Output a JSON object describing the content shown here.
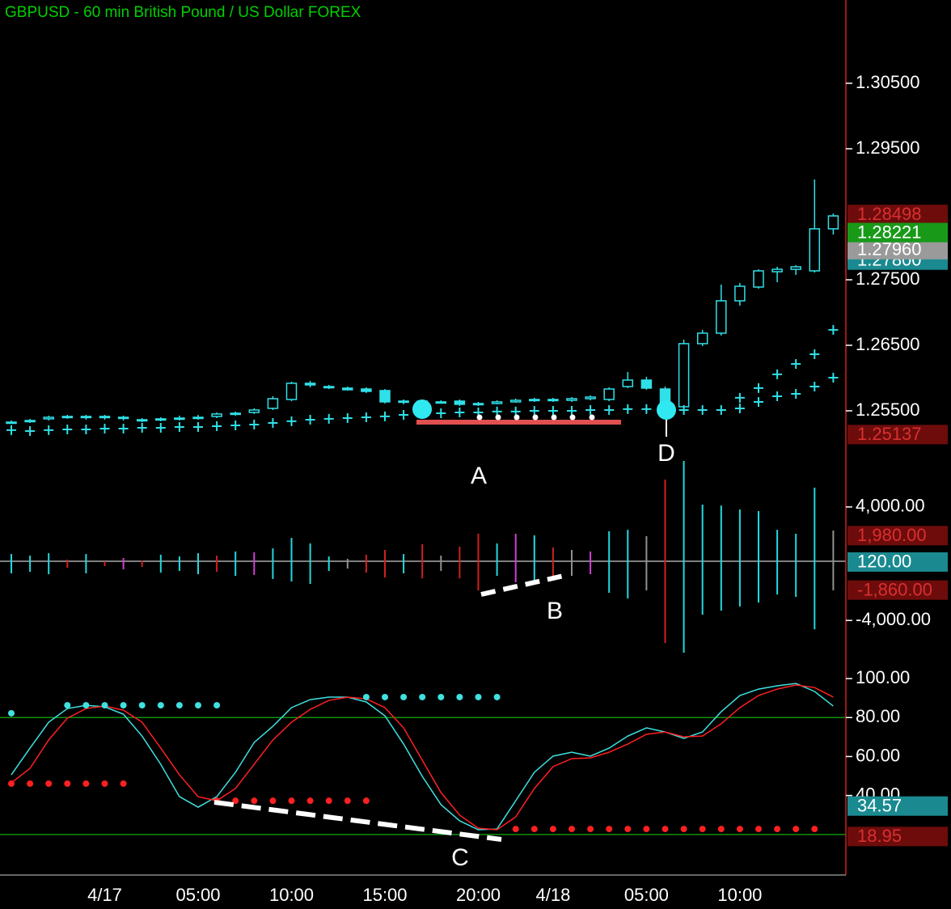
{
  "chart_data": [
    {
      "type": "candlestick",
      "title": "GBPUSD - 60 min  British Pound / US Dollar  FOREX",
      "color": "#30e0e8",
      "open": [
        1.25327,
        1.2534,
        1.25377,
        1.25401,
        1.25401,
        1.25414,
        1.25401,
        1.25352,
        1.25364,
        1.25377,
        1.25389,
        1.25414,
        1.25451,
        1.25475,
        1.25537,
        1.25673,
        1.2592,
        1.2587,
        1.25846,
        1.25833,
        1.25809,
        1.25636,
        1.25648,
        1.25636,
        1.25648,
        1.25599,
        1.25611,
        1.25636,
        1.2566,
        1.25673,
        1.2566,
        1.25685,
        1.25673,
        1.2587,
        1.25969,
        1.25833,
        1.25562,
        1.26525,
        1.26685,
        1.27179,
        1.27389,
        1.27623,
        1.2766,
        1.27636,
        1.28278
      ],
      "high": [
        1.25352,
        1.25377,
        1.25426,
        1.25438,
        1.25438,
        1.25438,
        1.25426,
        1.25389,
        1.25401,
        1.25426,
        1.25438,
        1.25475,
        1.25488,
        1.25537,
        1.25722,
        1.25944,
        1.25957,
        1.25895,
        1.2587,
        1.25858,
        1.25833,
        1.25673,
        1.25673,
        1.2566,
        1.25673,
        1.25636,
        1.2566,
        1.25685,
        1.25698,
        1.25698,
        1.2571,
        1.25735,
        1.25858,
        1.26093,
        1.26019,
        1.2587,
        1.26586,
        1.26735,
        1.27426,
        1.27451,
        1.2766,
        1.27698,
        1.27722,
        1.29031,
        1.28512
      ],
      "low": [
        1.25302,
        1.25315,
        1.25352,
        1.25377,
        1.25364,
        1.25364,
        1.25352,
        1.25327,
        1.2534,
        1.25352,
        1.25364,
        1.25389,
        1.25426,
        1.25451,
        1.25512,
        1.25648,
        1.25858,
        1.25833,
        1.25809,
        1.25772,
        1.25611,
        1.25599,
        1.25611,
        1.25611,
        1.25574,
        1.25574,
        1.25599,
        1.25623,
        1.25636,
        1.25636,
        1.25636,
        1.2566,
        1.25648,
        1.25846,
        1.25821,
        1.25414,
        1.25537,
        1.26488,
        1.26648,
        1.27105,
        1.27364,
        1.27463,
        1.27574,
        1.27611,
        1.28191
      ],
      "close": [
        1.25327,
        1.25352,
        1.25401,
        1.25414,
        1.25414,
        1.25401,
        1.25389,
        1.25364,
        1.25377,
        1.25389,
        1.25401,
        1.25451,
        1.25463,
        1.25512,
        1.25685,
        1.2592,
        1.25895,
        1.25858,
        1.25821,
        1.25796,
        1.25636,
        1.25648,
        1.25636,
        1.25636,
        1.25599,
        1.25611,
        1.25636,
        1.2566,
        1.25673,
        1.2566,
        1.25685,
        1.2571,
        1.25833,
        1.25969,
        1.25846,
        1.25599,
        1.26525,
        1.26685,
        1.27179,
        1.27401,
        1.27636,
        1.2766,
        1.27698,
        1.28278,
        1.28475
      ],
      "bands": [
        {
          "color": "#30e0e8",
          "values": [
            1.25204,
            1.25191,
            1.25204,
            1.25216,
            1.25216,
            1.25228,
            1.25228,
            1.25241,
            1.25241,
            1.25253,
            1.25253,
            1.25265,
            1.25278,
            1.2529,
            1.25315,
            1.2534,
            1.25364,
            1.25377,
            1.25389,
            1.25401,
            1.25414,
            1.25438,
            1.25451,
            1.25463,
            1.25475,
            1.25475,
            1.25488,
            1.25488,
            1.255,
            1.255,
            1.255,
            1.25512,
            1.25512,
            1.25525,
            1.25525,
            1.25525,
            1.25512,
            1.25512,
            1.25512,
            1.25537,
            1.25636,
            1.25722,
            1.25759,
            1.2587,
            1.26006
          ]
        },
        {
          "color": "#30e0e8",
          "values": [
            null,
            null,
            null,
            null,
            null,
            null,
            null,
            null,
            null,
            null,
            null,
            null,
            null,
            null,
            null,
            null,
            null,
            null,
            null,
            null,
            null,
            null,
            null,
            null,
            null,
            null,
            null,
            null,
            null,
            null,
            null,
            null,
            null,
            null,
            null,
            null,
            null,
            null,
            null,
            1.25698,
            1.25846,
            1.26056,
            1.26216,
            1.26364,
            1.26735
          ]
        }
      ],
      "ylim": [
        1.24302,
        1.31771
      ],
      "yticks": [
        {
          "value": 1.305,
          "label": "1.30500"
        },
        {
          "value": 1.295,
          "label": "1.29500"
        },
        {
          "value": 1.275,
          "label": "1.27500"
        },
        {
          "value": 1.265,
          "label": "1.26500"
        },
        {
          "value": 1.255,
          "label": "1.25500"
        }
      ],
      "markers": [
        {
          "value": 1.278,
          "label": "1.27800",
          "color": "#1a8a90",
          "text_color": "#ffffff"
        },
        {
          "value": 1.2796,
          "label": "1.27960",
          "color": "#9a9a9a",
          "text_color": "#ffffff"
        },
        {
          "value": 1.28498,
          "label": "1.28498",
          "color": "#6e0c0c",
          "text_color": "#d83030"
        },
        {
          "value": 1.28221,
          "label": "1.28221",
          "color": "#189a18",
          "text_color": "#ffffff"
        },
        {
          "value": 1.25137,
          "label": "1.25137",
          "color": "#6e0c0c",
          "text_color": "#d83030"
        }
      ],
      "annotations": [
        "A",
        "D"
      ]
    },
    {
      "type": "range_bar",
      "high": [
        680,
        570,
        740,
        290,
        680,
        170,
        400,
        230,
        630,
        510,
        740,
        570,
        860,
        800,
        1080,
        1820,
        1430,
        510,
        340,
        630,
        970,
        680,
        1370,
        570,
        1200,
        2110,
        1430,
        2110,
        2000,
        1140,
        970,
        860,
        2280,
        2390,
        1940,
        5930,
        7240,
        4160,
        4100,
        3820,
        3710,
        2390,
        2110,
        5360,
        2340
      ],
      "low": [
        -680,
        -570,
        -740,
        -290,
        -680,
        -170,
        -400,
        -230,
        -630,
        -510,
        -740,
        -570,
        -860,
        -800,
        -1080,
        -1250,
        -1430,
        -510,
        -340,
        -630,
        -970,
        -680,
        -1030,
        -510,
        -1030,
        -1880,
        -860,
        -1310,
        -1200,
        -1140,
        -860,
        -740,
        -2050,
        -2450,
        -1880,
        -5590,
        -6270,
        -3590,
        -3310,
        -3020,
        -2740,
        -2170,
        -2340,
        -4620,
        -1880
      ],
      "colors": [
        "#22d8e0",
        "#22d8e0",
        "#22d8e0",
        "#d02020",
        "#22d8e0",
        "#d02020",
        "#d040d0",
        "#d02020",
        "#22d8e0",
        "#22d8e0",
        "#22d8e0",
        "#d02020",
        "#22d8e0",
        "#d040d0",
        "#22d8e0",
        "#22d8e0",
        "#22d8e0",
        "#22d8e0",
        "#909090",
        "#d02020",
        "#d02020",
        "#22d8e0",
        "#d02020",
        "#909090",
        "#d02020",
        "#d02020",
        "#22d8e0",
        "#d040d0",
        "#22d8e0",
        "#d02020",
        "#909090",
        "#d040d0",
        "#22d8e0",
        "#22d8e0",
        "#909090",
        "#d02020",
        "#22d8e0",
        "#22d8e0",
        "#22d8e0",
        "#22d8e0",
        "#22d8e0",
        "#22d8e0",
        "#22d8e0",
        "#22d8e0",
        "#909090"
      ],
      "ylim": [
        -6440,
        7810
      ],
      "yticks": [
        {
          "value": 4000,
          "label": "4,000.00"
        },
        {
          "value": -4000,
          "label": "-4,000.00"
        }
      ],
      "markers": [
        {
          "value": 1980,
          "label": "1,980.00",
          "color": "#6e0c0c",
          "text_color": "#d83030"
        },
        {
          "value": -1860,
          "label": "-1,860.00",
          "color": "#6e0c0c",
          "text_color": "#d83030"
        },
        {
          "value": 120,
          "label": "120.00",
          "color": "#1a8a90",
          "text_color": "#ffffff"
        }
      ],
      "annotations": [
        "B"
      ]
    },
    {
      "type": "line",
      "categories": [
        null,
        null,
        null,
        null,
        null,
        "4/17",
        null,
        null,
        null,
        null,
        "05:00",
        null,
        null,
        null,
        null,
        "10:00",
        null,
        null,
        null,
        null,
        "15:00",
        null,
        null,
        null,
        null,
        "20:00",
        null,
        null,
        null,
        "4/18",
        null,
        null,
        null,
        null,
        "05:00",
        null,
        null,
        null,
        null,
        "10:00",
        null,
        null,
        null,
        null,
        null
      ],
      "series": [
        {
          "color": "#40e0e0",
          "values": [
            50.6,
            64.3,
            77.6,
            84.6,
            86.3,
            85.5,
            81.7,
            70.5,
            56,
            39.4,
            34,
            39.4,
            51.9,
            67.2,
            75.5,
            85.1,
            89.2,
            90.5,
            90.5,
            88,
            80.9,
            66.4,
            49.8,
            35.3,
            27,
            22.4,
            22.8,
            37.3,
            51.9,
            60.2,
            62.2,
            60.2,
            64.3,
            70.5,
            74.7,
            72.6,
            69.3,
            72.6,
            83,
            91.3,
            94.6,
            96.3,
            97.5,
            93.4,
            85.9
          ]
        },
        {
          "color": "#ff2020",
          "values": [
            46.5,
            53.9,
            68.5,
            79.7,
            84.6,
            85.9,
            83.8,
            77.6,
            64.3,
            50.6,
            39.4,
            37.3,
            43.6,
            56,
            68.5,
            77.6,
            84.2,
            88.8,
            90.5,
            89.6,
            85.1,
            74.7,
            58.1,
            41.5,
            29.9,
            23.2,
            22.4,
            29,
            43.6,
            54.8,
            58.9,
            59.3,
            62.2,
            66.4,
            71.4,
            72.6,
            70.1,
            70.5,
            76.8,
            85.1,
            91.3,
            94.6,
            96.7,
            95.4,
            90.5
          ]
        }
      ],
      "dots": [
        {
          "color": "#40e0e0",
          "values": [
            82.2,
            null,
            null,
            86.3,
            86.3,
            86.3,
            86.3,
            86.3,
            86.3,
            86.3,
            86.3,
            86.3,
            null,
            null,
            null,
            null,
            null,
            null,
            null,
            90.5,
            90.5,
            90.5,
            90.5,
            90.5,
            90.5,
            90.5,
            90.5,
            null,
            null,
            null,
            null,
            null,
            null,
            null,
            null,
            null,
            null,
            null,
            null,
            null,
            null,
            null,
            null,
            null,
            null
          ]
        },
        {
          "color": "#ff2020",
          "values": [
            46.1,
            46.1,
            46.1,
            46.1,
            46.1,
            46.1,
            46.1,
            null,
            null,
            null,
            null,
            37.3,
            37.3,
            37.3,
            37.3,
            37.3,
            37.3,
            37.3,
            37.3,
            37.3,
            null,
            null,
            null,
            null,
            null,
            null,
            null,
            22.8,
            22.8,
            22.8,
            22.8,
            22.8,
            22.8,
            22.8,
            22.8,
            22.8,
            22.8,
            22.8,
            22.8,
            22.8,
            22.8,
            22.8,
            22.8,
            22.8,
            null
          ]
        }
      ],
      "levels": [
        80,
        20
      ],
      "level_color": "#109010",
      "ylim": [
        0,
        110
      ],
      "yticks": [
        {
          "value": 100,
          "label": "100.00"
        },
        {
          "value": 80,
          "label": "80.00"
        },
        {
          "value": 60,
          "label": "60.00"
        },
        {
          "value": 40,
          "label": "40.00"
        }
      ],
      "markers": [
        {
          "value": 34.57,
          "label": "34.57",
          "color": "#1a8a90",
          "text_color": "#ffffff"
        },
        {
          "value": 18.95,
          "label": "18.95",
          "color": "#6e0c0c",
          "text_color": "#d83030"
        }
      ],
      "annotations": [
        "C"
      ]
    }
  ]
}
